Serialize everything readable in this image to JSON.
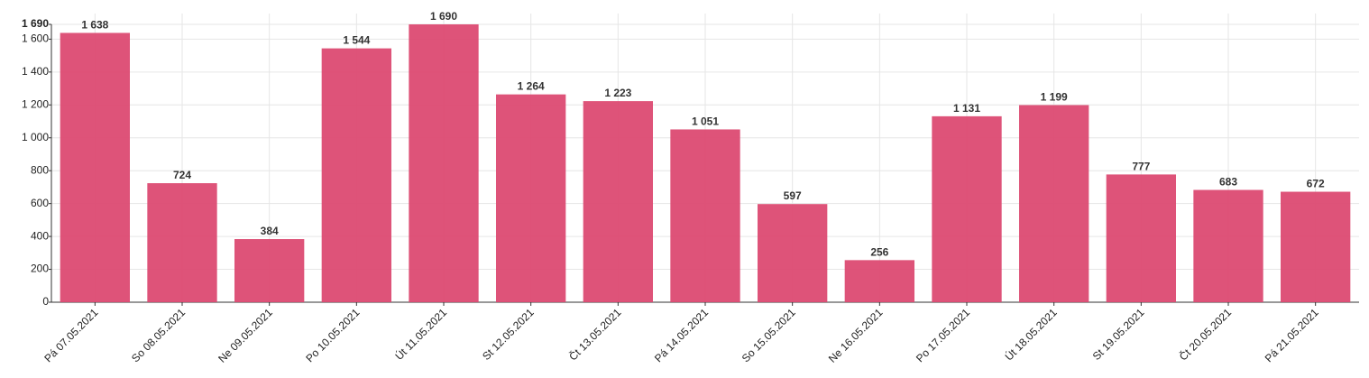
{
  "chart_data": {
    "type": "bar",
    "categories": [
      "Pá 07.05.2021",
      "So 08.05.2021",
      "Ne 09.05.2021",
      "Po 10.05.2021",
      "Út 11.05.2021",
      "St 12.05.2021",
      "Čt 13.05.2021",
      "Pá 14.05.2021",
      "So 15.05.2021",
      "Ne 16.05.2021",
      "Po 17.05.2021",
      "Út 18.05.2021",
      "St 19.05.2021",
      "Čt 20.05.2021",
      "Pá 21.05.2021"
    ],
    "values": [
      1638,
      724,
      384,
      1544,
      1690,
      1264,
      1223,
      1051,
      597,
      256,
      1131,
      1199,
      777,
      683,
      672
    ],
    "value_labels": [
      "1 638",
      "724",
      "384",
      "1 544",
      "1 690",
      "1 264",
      "1 223",
      "1 051",
      "597",
      "256",
      "1 131",
      "1 199",
      "777",
      "683",
      "672"
    ],
    "color": "#dc4a72",
    "ylim": [
      0,
      1690
    ],
    "yticks": [
      0,
      200,
      400,
      600,
      800,
      {
        "value": 1000,
        "label": "1 000"
      },
      {
        "value": 1200,
        "label": "1 200"
      },
      {
        "value": 1400,
        "label": "1 400"
      },
      {
        "value": 1600,
        "label": "1 600"
      },
      {
        "value": 1690,
        "label": "1 690"
      }
    ],
    "grid": true
  }
}
